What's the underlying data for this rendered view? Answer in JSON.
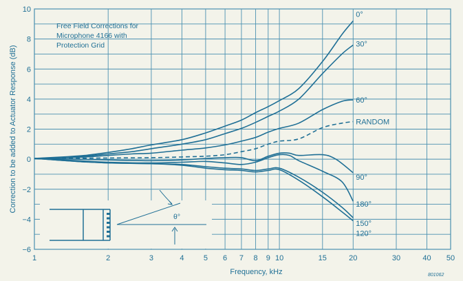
{
  "chart_data": {
    "type": "line",
    "title": "",
    "xlabel": "Frequency, kHz",
    "ylabel": "Correction to be added to Actuator Response (dB)",
    "x_scale": "log",
    "xlim": [
      1,
      50
    ],
    "ylim": [
      -6,
      10
    ],
    "grid": true,
    "x_ticks": [
      1,
      2,
      3,
      4,
      5,
      6,
      7,
      8,
      9,
      10,
      15,
      20,
      30,
      40,
      50
    ],
    "x_tick_labels": [
      "1",
      "2",
      "3",
      "4",
      "5",
      "6",
      "7",
      "8",
      "9",
      "10",
      "15",
      "20",
      "30",
      "40",
      "50"
    ],
    "y_ticks": [
      -6,
      -4,
      -2,
      0,
      2,
      4,
      6,
      8,
      10
    ],
    "y_tick_labels": [
      "−6",
      "−4",
      "−2",
      "0",
      "2",
      "4",
      "6",
      "8",
      "10"
    ],
    "annotation": "Free Field Corrections for Microphone 4166 with Protection Grid",
    "diagram_angle_label": "θ°",
    "figure_code": "801062",
    "series": [
      {
        "name": "0°",
        "dashed": false,
        "points": [
          [
            1,
            0.05
          ],
          [
            1.3,
            0.15
          ],
          [
            1.6,
            0.25
          ],
          [
            2,
            0.45
          ],
          [
            2.5,
            0.7
          ],
          [
            3,
            0.95
          ],
          [
            4,
            1.3
          ],
          [
            5,
            1.75
          ],
          [
            6,
            2.2
          ],
          [
            7,
            2.6
          ],
          [
            8,
            3.1
          ],
          [
            9,
            3.5
          ],
          [
            10,
            3.9
          ],
          [
            12,
            4.7
          ],
          [
            15,
            6.5
          ],
          [
            18,
            8.3
          ],
          [
            20,
            9.2
          ]
        ]
      },
      {
        "name": "30°",
        "dashed": false,
        "points": [
          [
            1,
            0.05
          ],
          [
            1.3,
            0.12
          ],
          [
            1.6,
            0.2
          ],
          [
            2,
            0.35
          ],
          [
            2.5,
            0.5
          ],
          [
            3,
            0.7
          ],
          [
            4,
            1.0
          ],
          [
            5,
            1.3
          ],
          [
            6,
            1.7
          ],
          [
            7,
            2.05
          ],
          [
            8,
            2.45
          ],
          [
            9,
            2.85
          ],
          [
            10,
            3.2
          ],
          [
            12,
            4.0
          ],
          [
            15,
            5.7
          ],
          [
            18,
            7.0
          ],
          [
            20,
            7.6
          ]
        ]
      },
      {
        "name": "60°",
        "dashed": false,
        "points": [
          [
            1,
            0.05
          ],
          [
            1.5,
            0.12
          ],
          [
            2,
            0.25
          ],
          [
            2.5,
            0.35
          ],
          [
            3,
            0.4
          ],
          [
            4,
            0.6
          ],
          [
            5,
            0.75
          ],
          [
            6,
            0.95
          ],
          [
            7,
            1.2
          ],
          [
            8,
            1.45
          ],
          [
            9,
            1.8
          ],
          [
            10,
            2.05
          ],
          [
            12,
            2.4
          ],
          [
            15,
            3.3
          ],
          [
            18,
            3.85
          ],
          [
            20,
            3.95
          ]
        ]
      },
      {
        "name": "RANDOM",
        "dashed": true,
        "points": [
          [
            1,
            0.05
          ],
          [
            1.5,
            0.06
          ],
          [
            2,
            0.08
          ],
          [
            3,
            0.1
          ],
          [
            4,
            0.15
          ],
          [
            5,
            0.2
          ],
          [
            6,
            0.3
          ],
          [
            7,
            0.5
          ],
          [
            8,
            0.7
          ],
          [
            9,
            1.0
          ],
          [
            10,
            1.2
          ],
          [
            12,
            1.35
          ],
          [
            15,
            2.1
          ],
          [
            18,
            2.4
          ],
          [
            20,
            2.5
          ]
        ]
      },
      {
        "name": "90°",
        "dashed": false,
        "points": [
          [
            1,
            0.05
          ],
          [
            1.5,
            0.0
          ],
          [
            2,
            -0.05
          ],
          [
            3,
            -0.1
          ],
          [
            4,
            -0.05
          ],
          [
            5,
            0.05
          ],
          [
            6,
            0.1
          ],
          [
            7,
            0.1
          ],
          [
            8,
            -0.1
          ],
          [
            9,
            0.2
          ],
          [
            10,
            0.4
          ],
          [
            11,
            0.4
          ],
          [
            12,
            0.25
          ],
          [
            15,
            0.3
          ],
          [
            17,
            0.0
          ],
          [
            20,
            -0.9
          ]
        ]
      },
      {
        "name": "180°",
        "dashed": false,
        "points": [
          [
            1,
            0.05
          ],
          [
            1.5,
            -0.1
          ],
          [
            2,
            -0.2
          ],
          [
            3,
            -0.25
          ],
          [
            4,
            -0.2
          ],
          [
            5,
            -0.15
          ],
          [
            6,
            -0.25
          ],
          [
            7,
            -0.35
          ],
          [
            8,
            -0.2
          ],
          [
            9,
            0.1
          ],
          [
            10,
            0.3
          ],
          [
            11,
            0.25
          ],
          [
            12,
            -0.1
          ],
          [
            15,
            -0.8
          ],
          [
            18,
            -1.5
          ],
          [
            20,
            -2.8
          ]
        ]
      },
      {
        "name": "150°",
        "dashed": false,
        "points": [
          [
            1,
            0.05
          ],
          [
            1.5,
            -0.15
          ],
          [
            2,
            -0.25
          ],
          [
            3,
            -0.3
          ],
          [
            4,
            -0.35
          ],
          [
            5,
            -0.5
          ],
          [
            6,
            -0.6
          ],
          [
            7,
            -0.65
          ],
          [
            8,
            -0.75
          ],
          [
            9,
            -0.65
          ],
          [
            10,
            -0.6
          ],
          [
            12,
            -1.2
          ],
          [
            15,
            -2.2
          ],
          [
            18,
            -3.2
          ],
          [
            20,
            -3.9
          ]
        ]
      },
      {
        "name": "120°",
        "dashed": false,
        "points": [
          [
            1,
            0.05
          ],
          [
            1.5,
            -0.15
          ],
          [
            2,
            -0.25
          ],
          [
            3,
            -0.3
          ],
          [
            4,
            -0.4
          ],
          [
            5,
            -0.6
          ],
          [
            6,
            -0.7
          ],
          [
            7,
            -0.75
          ],
          [
            8,
            -0.85
          ],
          [
            9,
            -0.75
          ],
          [
            10,
            -0.7
          ],
          [
            12,
            -1.4
          ],
          [
            15,
            -2.5
          ],
          [
            18,
            -3.5
          ],
          [
            20,
            -4.1
          ]
        ]
      }
    ],
    "curve_labels": [
      {
        "series": "0°",
        "text": "0°"
      },
      {
        "series": "30°",
        "text": "30°"
      },
      {
        "series": "60°",
        "text": "60°"
      },
      {
        "series": "RANDOM",
        "text": "RANDOM"
      },
      {
        "series": "90°",
        "text": "90°"
      },
      {
        "series": "180°",
        "text": "180°"
      },
      {
        "series": "150°",
        "text": "150°"
      },
      {
        "series": "120°",
        "text": "120°"
      }
    ],
    "colors": {
      "background": "#f3f3ea",
      "grid": "#4a90b0",
      "curve": "#1f6f95",
      "text": "#1f6f95"
    }
  }
}
